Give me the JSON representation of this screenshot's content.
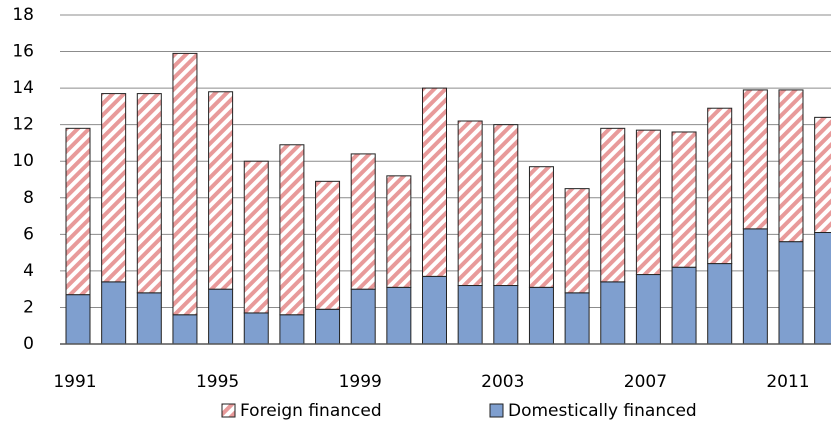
{
  "chart_data": {
    "type": "stacked_bar",
    "categories": [
      "1991",
      null,
      null,
      null,
      "1995",
      null,
      null,
      null,
      "1999",
      null,
      null,
      null,
      "2003",
      null,
      null,
      null,
      "2007",
      null,
      null,
      null,
      "2011",
      null
    ],
    "series": [
      {
        "name": "Domestically financed",
        "color": "#7f9fcf",
        "values": [
          2.7,
          3.4,
          2.8,
          1.6,
          3.0,
          1.7,
          1.6,
          1.9,
          3.0,
          3.1,
          3.7,
          3.2,
          3.2,
          3.1,
          2.8,
          3.4,
          3.8,
          4.2,
          4.4,
          6.3,
          5.6,
          6.1
        ]
      },
      {
        "name": "Foreign financed",
        "color": "#e89a9a",
        "pattern": "hatch",
        "values": [
          9.1,
          10.3,
          10.9,
          14.3,
          10.8,
          8.3,
          9.3,
          7.0,
          7.4,
          6.1,
          10.3,
          9.0,
          8.8,
          6.6,
          5.7,
          8.4,
          7.9,
          7.4,
          8.5,
          7.6,
          8.3,
          6.3
        ]
      }
    ],
    "ylim": [
      0,
      18
    ],
    "yticks": [
      0,
      2,
      4,
      6,
      8,
      10,
      12,
      14,
      16,
      18
    ],
    "grid": true,
    "legend": "bottom"
  }
}
